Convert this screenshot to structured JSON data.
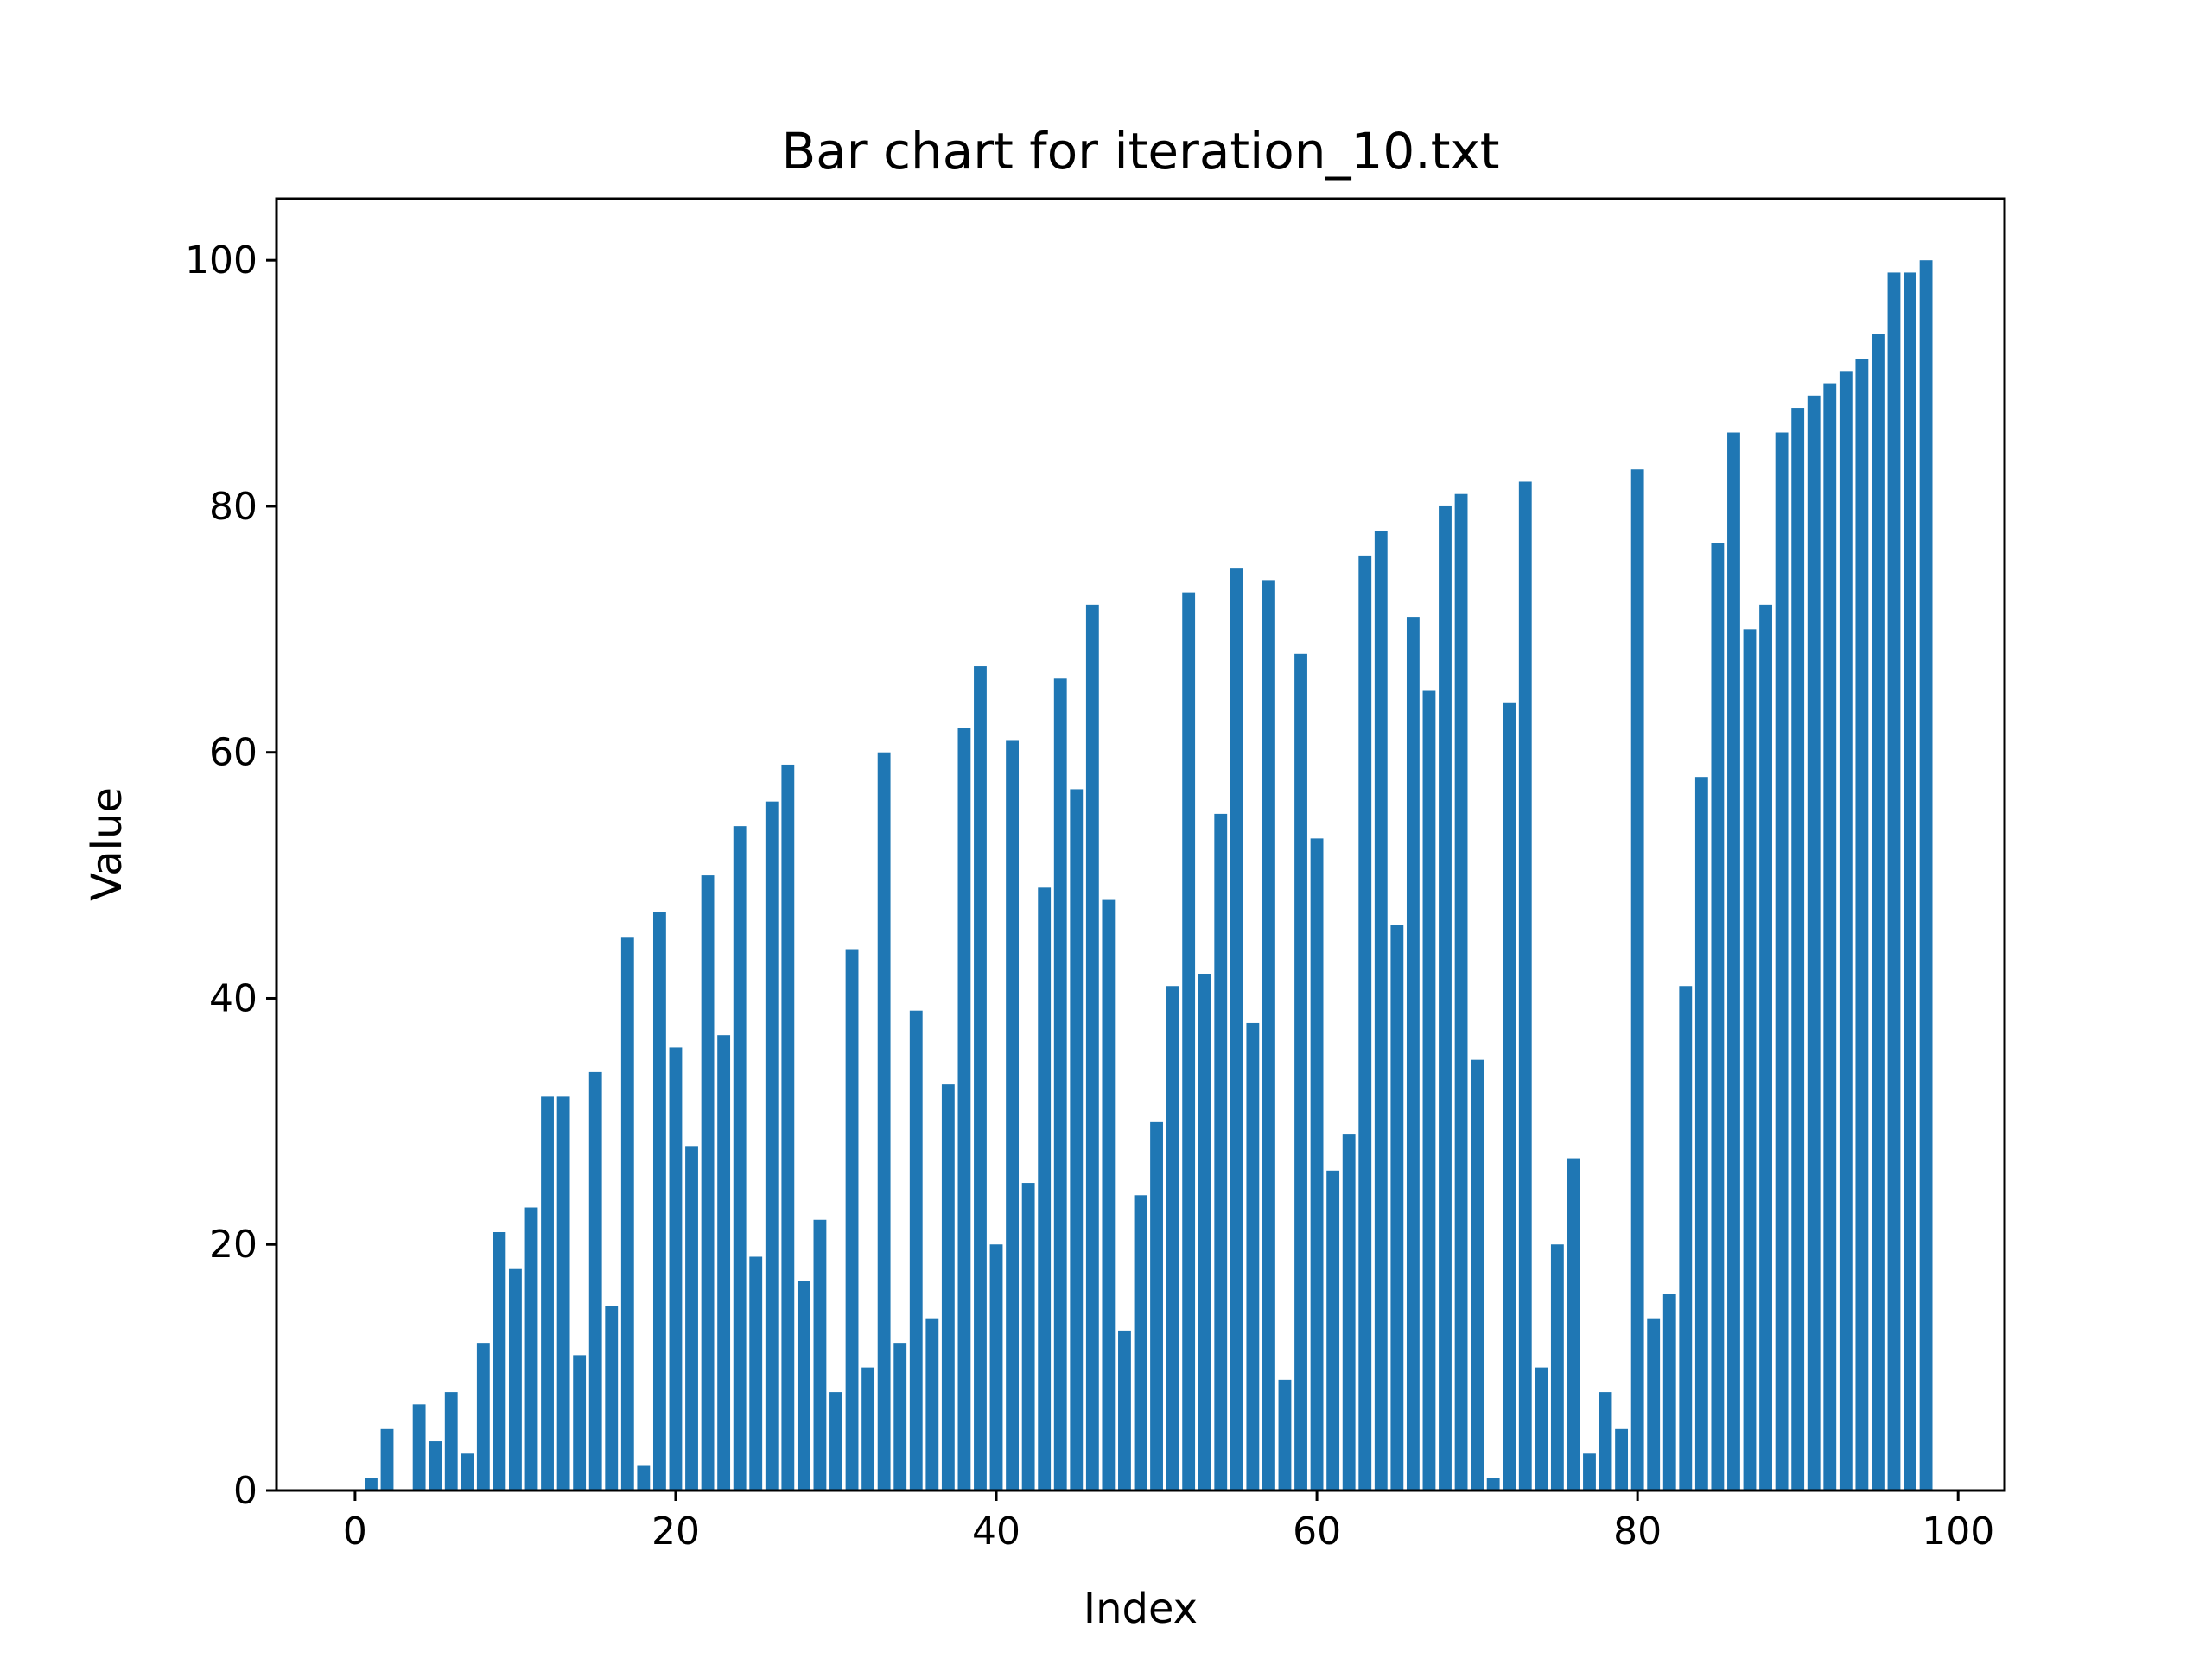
{
  "chart_data": {
    "type": "bar",
    "title": "Bar chart for iteration_10.txt",
    "xlabel": "Index",
    "ylabel": "Value",
    "xlim": [
      -4.9,
      102.9
    ],
    "ylim": [
      0,
      105
    ],
    "x_ticks": [
      0,
      20,
      40,
      60,
      80,
      100
    ],
    "y_ticks": [
      0,
      20,
      40,
      60,
      80,
      100
    ],
    "bar_color": "#1f77b4",
    "grid": false,
    "legend": "none",
    "x": [
      0,
      1,
      2,
      3,
      4,
      5,
      6,
      7,
      8,
      9,
      10,
      11,
      12,
      13,
      14,
      15,
      16,
      17,
      18,
      19,
      20,
      21,
      22,
      23,
      24,
      25,
      26,
      27,
      28,
      29,
      30,
      31,
      32,
      33,
      34,
      35,
      36,
      37,
      38,
      39,
      40,
      41,
      42,
      43,
      44,
      45,
      46,
      47,
      48,
      49,
      50,
      51,
      52,
      53,
      54,
      55,
      56,
      57,
      58,
      59,
      60,
      61,
      62,
      63,
      64,
      65,
      66,
      67,
      68,
      69,
      70,
      71,
      72,
      73,
      74,
      75,
      76,
      77,
      78,
      79,
      80,
      81,
      82,
      83,
      84,
      85,
      86,
      87,
      88,
      89,
      90,
      91,
      92,
      93,
      94,
      95,
      96,
      97,
      98
    ],
    "values": [
      0,
      1,
      5,
      0,
      7,
      4,
      8,
      3,
      12,
      21,
      18,
      23,
      32,
      32,
      11,
      34,
      15,
      45,
      2,
      47,
      36,
      28,
      50,
      37,
      54,
      19,
      56,
      59,
      17,
      22,
      8,
      44,
      10,
      60,
      12,
      39,
      14,
      33,
      62,
      67,
      20,
      61,
      25,
      49,
      66,
      57,
      72,
      48,
      13,
      24,
      30,
      41,
      73,
      42,
      55,
      75,
      38,
      74,
      9,
      68,
      53,
      26,
      29,
      76,
      78,
      46,
      71,
      65,
      80,
      81,
      35,
      1,
      64,
      82,
      10,
      20,
      27,
      3,
      8,
      5,
      83,
      14,
      16,
      41,
      58,
      77,
      86,
      70,
      72,
      86,
      88,
      89,
      90,
      91,
      92,
      94,
      99,
      99,
      100
    ]
  }
}
